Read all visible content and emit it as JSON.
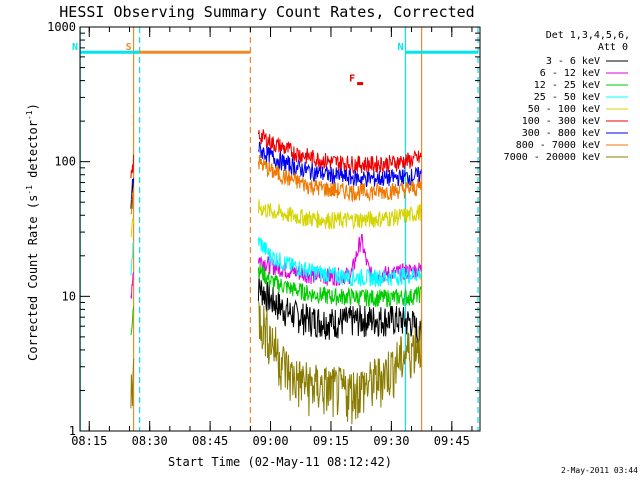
{
  "colors": {
    "cyan": "#00e5ee",
    "orange": "#f08a24",
    "red": "#e00000",
    "black": "#000000"
  },
  "chart_data": {
    "type": "line",
    "title": "HESSI Observing Summary Count Rates, Corrected",
    "xlabel": "Start Time (02-May-11 08:12:42)",
    "ylabel": "Corrected Count Rate (s⁻¹ detector⁻¹)",
    "ylabel_main": "Corrected Count Rate (s",
    "ylabel_mid": " detector",
    "ylabel_end": ")",
    "ylabel_sup": "-1",
    "yscale": "log",
    "ylim": [
      1,
      1000
    ],
    "xlim": [
      "08:12:42",
      "09:52:00"
    ],
    "x_ticks": [
      "08:15",
      "08:30",
      "08:45",
      "09:00",
      "09:15",
      "09:30",
      "09:45"
    ],
    "y_ticks": [
      "1",
      "10",
      "100",
      "1000"
    ],
    "legend_header": [
      "Det 1,3,4,5,6,",
      "Att 0"
    ],
    "footer_date": "2-May-2011 03:44",
    "markers": [
      {
        "label": "S",
        "from": "08:26:00",
        "to": "08:55:00",
        "color": "#f08a24",
        "y": 650
      },
      {
        "label": "N",
        "from": "08:12:42",
        "to": "08:27:30",
        "color": "#00e5ee",
        "y": 650
      },
      {
        "label": "N",
        "from": "09:33:30",
        "to": "09:51:30",
        "color": "#00e5ee",
        "y": 650
      },
      {
        "label": "F",
        "from": "09:21:30",
        "to": "09:23:00",
        "color": "#e00000",
        "y": 380
      }
    ],
    "vertical_lines": [
      {
        "time": "08:12:45",
        "color": "#00e5ee",
        "style": "solid"
      },
      {
        "time": "08:26:00",
        "color": "#f08a24",
        "style": "solid"
      },
      {
        "time": "08:27:30",
        "color": "#00e5ee",
        "style": "dashed"
      },
      {
        "time": "08:55:00",
        "color": "#f08a24",
        "style": "dashed"
      },
      {
        "time": "09:33:30",
        "color": "#00e5ee",
        "style": "solid"
      },
      {
        "time": "09:37:30",
        "color": "#f08a24",
        "style": "solid"
      },
      {
        "time": "09:51:30",
        "color": "#00e5ee",
        "style": "dashed"
      }
    ],
    "series": [
      {
        "name": "3 - 6 keV",
        "color": "#000000",
        "segment1": {
          "x": [
            "08:25:20",
            "08:25:40",
            "08:26:00"
          ],
          "y": [
            45,
            60,
            75
          ]
        },
        "segment2": {
          "x": [
            "08:57:00",
            "09:00:00",
            "09:05:00",
            "09:10:00",
            "09:15:00",
            "09:20:00",
            "09:25:00",
            "09:30:00",
            "09:35:00",
            "09:37:30"
          ],
          "y": [
            12,
            9.5,
            7.5,
            6.8,
            6.5,
            6.7,
            6.8,
            6.8,
            6.5,
            5
          ]
        }
      },
      {
        "name": "6 - 12 keV",
        "color": "#e000e0",
        "segment1": {
          "x": [
            "08:25:20",
            "08:25:40",
            "08:26:00"
          ],
          "y": [
            10,
            13,
            16
          ]
        },
        "segment2": {
          "x": [
            "08:57:00",
            "09:00:00",
            "09:05:00",
            "09:10:00",
            "09:15:00",
            "09:20:00",
            "09:22:30",
            "09:24:00",
            "09:25:00",
            "09:30:00",
            "09:35:00",
            "09:37:30"
          ],
          "y": [
            19,
            17,
            15.5,
            14.5,
            14,
            14.5,
            27,
            17,
            14.5,
            14.8,
            15.5,
            16
          ]
        }
      },
      {
        "name": "12 - 25 keV",
        "color": "#00cc00",
        "segment1": {
          "x": [
            "08:25:20",
            "08:25:40",
            "08:26:00"
          ],
          "y": [
            5.5,
            7,
            9
          ]
        },
        "segment2": {
          "x": [
            "08:57:00",
            "09:00:00",
            "09:05:00",
            "09:10:00",
            "09:15:00",
            "09:20:00",
            "09:25:00",
            "09:30:00",
            "09:35:00",
            "09:37:30"
          ],
          "y": [
            16,
            13,
            11.5,
            10.5,
            10,
            10,
            9.8,
            9.8,
            10,
            10.5
          ]
        }
      },
      {
        "name": "25 - 50 keV",
        "color": "#00ffff",
        "segment1": {
          "x": [
            "08:25:20",
            "08:25:40",
            "08:26:00"
          ],
          "y": [
            16,
            20,
            24
          ]
        },
        "segment2": {
          "x": [
            "08:57:00",
            "09:00:00",
            "09:05:00",
            "09:10:00",
            "09:15:00",
            "09:20:00",
            "09:25:00",
            "09:30:00",
            "09:35:00",
            "09:37:30"
          ],
          "y": [
            26,
            20,
            17,
            15.5,
            14.5,
            14,
            13.8,
            14,
            14.5,
            15
          ]
        }
      },
      {
        "name": "50 - 100 keV",
        "color": "#d4d400",
        "segment1": {
          "x": [
            "08:25:20",
            "08:25:40",
            "08:26:00"
          ],
          "y": [
            28,
            32,
            36
          ]
        },
        "segment2": {
          "x": [
            "08:57:00",
            "09:00:00",
            "09:05:00",
            "09:10:00",
            "09:15:00",
            "09:20:00",
            "09:25:00",
            "09:30:00",
            "09:35:00",
            "09:37:30"
          ],
          "y": [
            46,
            43,
            40,
            38,
            37,
            37,
            37.5,
            38.5,
            40.5,
            43
          ]
        }
      },
      {
        "name": "100 - 300 keV",
        "color": "#ee0000",
        "segment1": {
          "x": [
            "08:25:20",
            "08:25:40",
            "08:26:00"
          ],
          "y": [
            70,
            85,
            100
          ]
        },
        "segment2": {
          "x": [
            "08:57:00",
            "09:00:00",
            "09:05:00",
            "09:10:00",
            "09:15:00",
            "09:20:00",
            "09:25:00",
            "09:30:00",
            "09:35:00",
            "09:37:30"
          ],
          "y": [
            160,
            140,
            120,
            108,
            100,
            97,
            96,
            98,
            103,
            108
          ]
        }
      },
      {
        "name": "300 - 800 keV",
        "color": "#0000ee",
        "segment1": {
          "x": [
            "08:25:20",
            "08:25:40",
            "08:26:00"
          ],
          "y": [
            50,
            65,
            80
          ]
        },
        "segment2": {
          "x": [
            "08:57:00",
            "09:00:00",
            "09:05:00",
            "09:10:00",
            "09:15:00",
            "09:20:00",
            "09:25:00",
            "09:30:00",
            "09:35:00",
            "09:37:30"
          ],
          "y": [
            125,
            110,
            94,
            85,
            80,
            76,
            75,
            76,
            78,
            80
          ]
        }
      },
      {
        "name": "800 - 7000 keV",
        "color": "#f07800",
        "segment1": {
          "x": [
            "08:25:20",
            "08:25:40",
            "08:26:00"
          ],
          "y": [
            42,
            55,
            68
          ]
        },
        "segment2": {
          "x": [
            "08:57:00",
            "09:00:00",
            "09:05:00",
            "09:10:00",
            "09:15:00",
            "09:20:00",
            "09:25:00",
            "09:30:00",
            "09:35:00",
            "09:37:30"
          ],
          "y": [
            100,
            86,
            74,
            66,
            62,
            60,
            60,
            61,
            63,
            66
          ]
        }
      },
      {
        "name": "7000 - 20000 keV",
        "color": "#8a7c00",
        "segment1": {
          "x": [
            "08:25:20",
            "08:25:40",
            "08:26:00"
          ],
          "y": [
            2,
            2.5,
            3
          ]
        },
        "segment2": {
          "x": [
            "08:57:00",
            "09:00:00",
            "09:02:30",
            "09:05:00",
            "09:10:00",
            "09:15:00",
            "09:20:00",
            "09:25:00",
            "09:30:00",
            "09:35:00",
            "09:37:30"
          ],
          "y": [
            7.5,
            5,
            3.5,
            2.6,
            2.2,
            2.1,
            2.0,
            2.3,
            3,
            4.2,
            5
          ]
        }
      }
    ]
  }
}
